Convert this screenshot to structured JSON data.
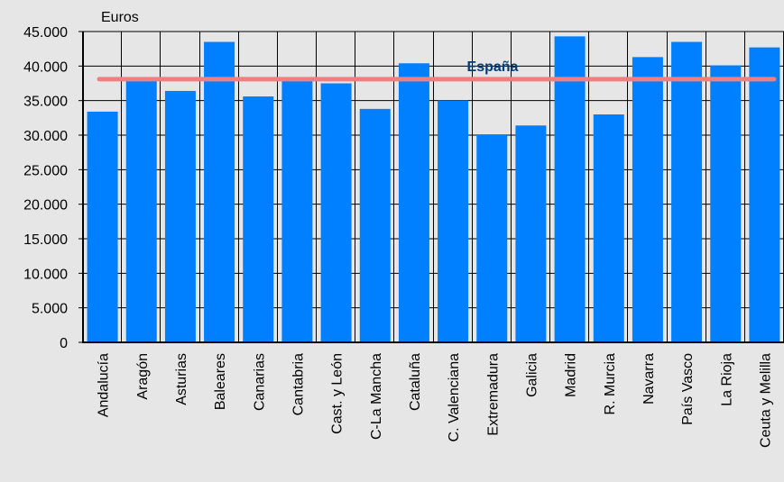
{
  "chart_data": {
    "type": "bar",
    "title": "",
    "ylabel": "Euros",
    "xlabel": "",
    "categories": [
      "Andalucía",
      "Aragón",
      "Asturias",
      "Baleares",
      "Canarias",
      "Cantabria",
      "Cast. y León",
      "C-La Mancha",
      "Cataluña",
      "C. Valenciana",
      "Extremadura",
      "Galicia",
      "Madrid",
      "R. Murcia",
      "Navarra",
      "País Vasco",
      "La Rioja",
      "Ceuta y Melilla"
    ],
    "values": [
      33400,
      38200,
      36400,
      43500,
      35600,
      37900,
      37500,
      33800,
      40400,
      35000,
      30000,
      31400,
      44300,
      33000,
      41300,
      43500,
      40100,
      42700
    ],
    "ylim": [
      0,
      45000
    ],
    "yticks": [
      0,
      5000,
      10000,
      15000,
      20000,
      25000,
      30000,
      35000,
      40000,
      45000
    ],
    "ytick_labels": [
      "0",
      "5.000",
      "10.000",
      "15.000",
      "20.000",
      "25.000",
      "30.000",
      "35.000",
      "40.000",
      "45.000"
    ],
    "grid": true,
    "reference_line": {
      "label": "España",
      "value": 38100,
      "color": "#f08080"
    },
    "colors": {
      "bar": "#0080ff",
      "background": "#e6e6e6",
      "grid": "#000000",
      "reference_label": "#003d7a"
    }
  }
}
